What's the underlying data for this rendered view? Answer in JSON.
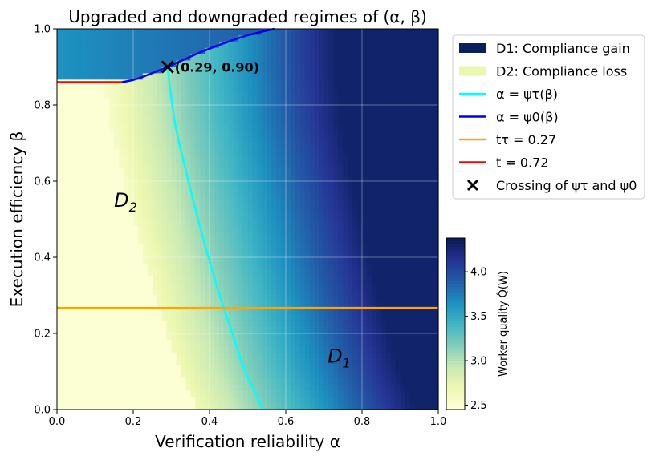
{
  "chart_data": {
    "type": "heatmap",
    "title": "Upgraded and downgraded regimes of (α, β)",
    "xlabel": "Verification reliability α",
    "ylabel": "Execution efficiency β",
    "xlim": [
      0,
      1
    ],
    "ylim": [
      0,
      1
    ],
    "xticks": [
      "0.0",
      "0.2",
      "0.4",
      "0.6",
      "0.8",
      "1.0"
    ],
    "yticks": [
      "0.0",
      "0.2",
      "0.4",
      "0.6",
      "0.8",
      "1.0"
    ],
    "grid": true,
    "colorbar": {
      "label": "Worker quality Q̂(W)",
      "range": [
        2.45,
        4.38
      ],
      "ticks": [
        "2.5",
        "3.0",
        "3.5",
        "4.0"
      ],
      "tick_values": [
        2.5,
        3.0,
        3.5,
        4.0
      ],
      "colormap": "YlGnBu"
    },
    "series": [
      {
        "name": "α = ψτ(β)",
        "color": "#00ffff",
        "type": "line",
        "x": [
          0.29,
          0.31,
          0.34,
          0.37,
          0.4,
          0.43,
          0.46,
          0.49,
          0.54
        ],
        "y": [
          0.9,
          0.75,
          0.62,
          0.5,
          0.39,
          0.29,
          0.2,
          0.11,
          0.0
        ]
      },
      {
        "name": "α = ψ0(β)",
        "color": "#0000ee",
        "type": "line",
        "x": [
          0.17,
          0.2,
          0.23,
          0.26,
          0.29,
          0.33,
          0.38,
          0.44,
          0.5,
          0.57
        ],
        "y": [
          0.86,
          0.866,
          0.876,
          0.888,
          0.9,
          0.918,
          0.94,
          0.963,
          0.983,
          1.0
        ]
      },
      {
        "name": "tτ = 0.27",
        "color": "#ffa500",
        "type": "hline",
        "y": 0.267,
        "x": [
          0,
          1
        ]
      },
      {
        "name": "t = 0.72",
        "color": "#ff0000",
        "type": "line",
        "x": [
          0.0,
          0.17
        ],
        "y": [
          0.86,
          0.86
        ]
      }
    ],
    "crossing": {
      "x": 0.29,
      "y": 0.9,
      "label": "(0.29, 0.90)"
    },
    "region_labels": [
      {
        "text": "D2",
        "x": 0.18,
        "y": 0.55
      },
      {
        "text": "D1",
        "x": 0.74,
        "y": 0.14
      }
    ],
    "legend": {
      "location": "outside right, top",
      "entries": [
        {
          "label": "D1: Compliance gain",
          "kind": "patch",
          "color": "#0b1f5e"
        },
        {
          "label": "D2: Compliance loss",
          "kind": "patch",
          "color": "#eaf7b1"
        },
        {
          "label": "α = ψτ(β)",
          "kind": "line",
          "color": "#00ffff"
        },
        {
          "label": "α = ψ0(β)",
          "kind": "line",
          "color": "#0000ee"
        },
        {
          "label": "tτ = 0.27",
          "kind": "line",
          "color": "#ffa500"
        },
        {
          "label": "t = 0.72",
          "kind": "line",
          "color": "#ff0000"
        },
        {
          "label": "Crossing of ψτ and ψ0",
          "kind": "marker",
          "color": "#000000"
        }
      ]
    }
  }
}
